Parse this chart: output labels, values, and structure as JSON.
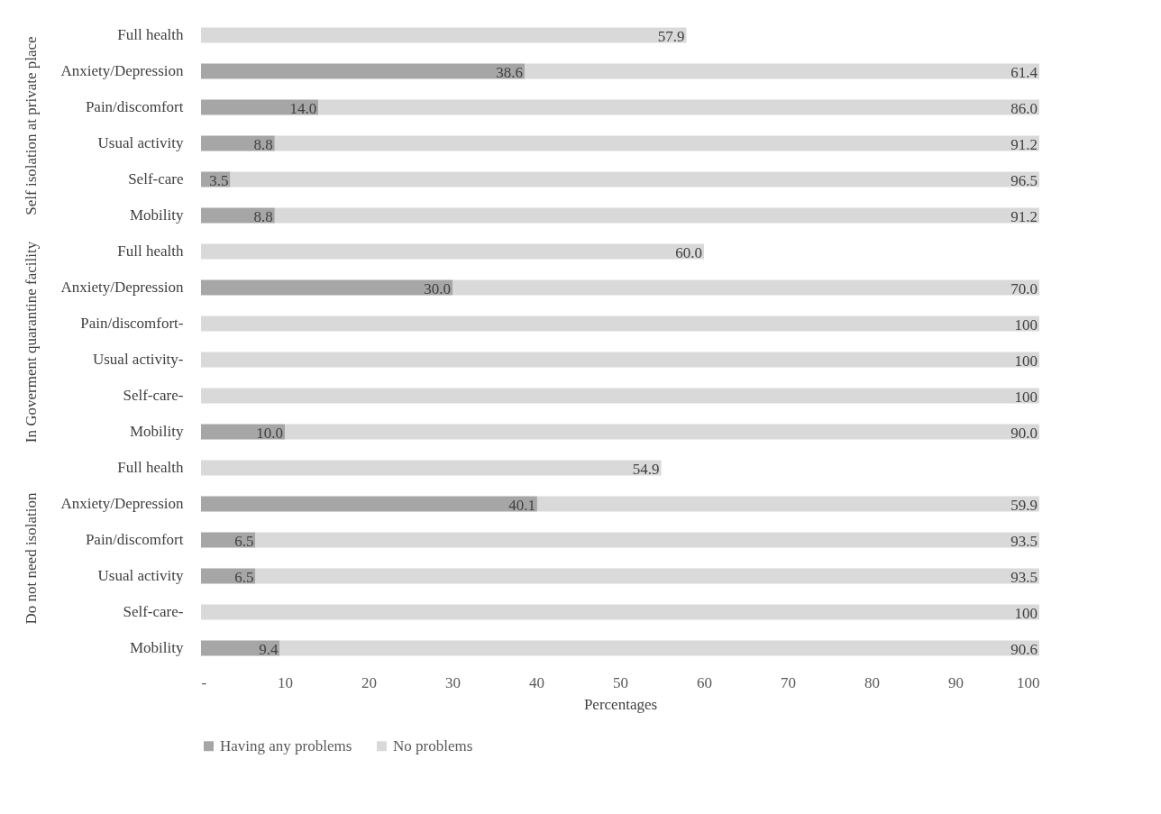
{
  "chart_data": [
    {
      "type": "bar",
      "orientation": "horizontal",
      "stacked": true,
      "ylabel": "Self isolation at private place",
      "legend": "bottom",
      "categories": [
        "Full health",
        "Anxiety/Depression",
        "Pain/discomfort",
        "Usual activity",
        "Self-care",
        "Mobility"
      ],
      "series": [
        {
          "name": "Having any problems",
          "color": "#a6a6a6",
          "values": [
            null,
            38.6,
            14.0,
            8.8,
            3.5,
            8.8
          ],
          "value_labels": [
            null,
            "38.6",
            "14.0",
            "8.8",
            "3.5",
            "8.8"
          ]
        },
        {
          "name": "No problems",
          "color": "#d9d9d9",
          "values": [
            57.9,
            61.4,
            86.0,
            91.2,
            96.5,
            91.2
          ],
          "value_labels": [
            "57.9",
            "61.4",
            "86.0",
            "91.2",
            "96.5",
            "91.2"
          ]
        }
      ],
      "xlim": [
        0,
        100
      ],
      "tick_labels": "y"
    },
    {
      "type": "bar",
      "orientation": "horizontal",
      "stacked": true,
      "ylabel": "In Goverment quarantine facility",
      "categories": [
        "Full health",
        "Anxiety/Depression",
        "Pain/discomfort-",
        "Usual activity-",
        "Self-care-",
        "Mobility"
      ],
      "series": [
        {
          "color": "#a6a6a6",
          "values": [
            null,
            30.0,
            null,
            null,
            null,
            10.0
          ],
          "value_labels": [
            null,
            "30.0",
            null,
            null,
            null,
            "10.0"
          ]
        },
        {
          "color": "#d9d9d9",
          "values": [
            60.0,
            70.0,
            100,
            100,
            100,
            90.0
          ],
          "value_labels": [
            "60.0",
            "70.0",
            "100",
            "100",
            "100",
            "90.0"
          ]
        }
      ],
      "xlim": [
        0,
        100
      ],
      "tick_labels": "y"
    },
    {
      "type": "bar",
      "orientation": "horizontal",
      "stacked": true,
      "ylabel": "Do not need isolation",
      "xlabel": "Percentages",
      "categories": [
        "Full health",
        "Anxiety/Depression",
        "Pain/discomfort",
        "Usual activity",
        "Self-care-",
        "Mobility"
      ],
      "series": [
        {
          "color": "#a6a6a6",
          "values": [
            null,
            40.1,
            6.5,
            6.5,
            null,
            9.4
          ],
          "value_labels": [
            null,
            "40.1",
            "6.5",
            "6.5",
            null,
            "9.4"
          ]
        },
        {
          "color": "#d9d9d9",
          "values": [
            54.9,
            59.9,
            93.5,
            93.5,
            100,
            90.6
          ],
          "value_labels": [
            "54.9",
            "59.9",
            "93.5",
            "93.5",
            "100",
            "90.6"
          ]
        }
      ],
      "xlim": [
        0,
        100
      ],
      "xticks": [
        {
          "value": 0,
          "label": "-"
        },
        10,
        20,
        30,
        40,
        50,
        60,
        70,
        80,
        90,
        100
      ]
    }
  ]
}
